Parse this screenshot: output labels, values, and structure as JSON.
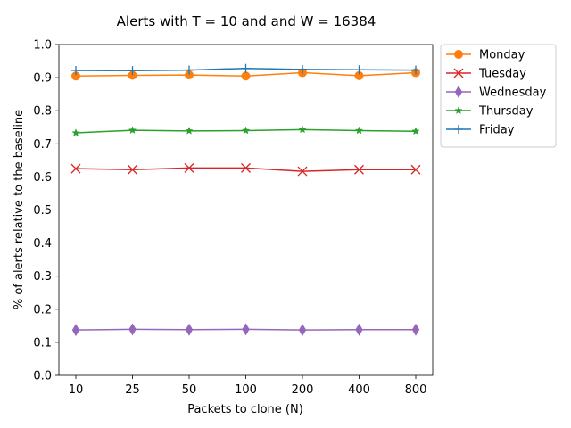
{
  "chart_data": {
    "type": "line",
    "title": "Alerts with T = 10 and and W = 16384",
    "xlabel": "Packets to clone (N)",
    "ylabel": "% of alerts relative to the baseline",
    "categories": [
      "10",
      "25",
      "50",
      "100",
      "200",
      "400",
      "800"
    ],
    "ylim": [
      0.0,
      1.0
    ],
    "yticks": [
      "0.0",
      "0.1",
      "0.2",
      "0.3",
      "0.4",
      "0.5",
      "0.6",
      "0.7",
      "0.8",
      "0.9",
      "1.0"
    ],
    "grid": false,
    "legend_position": "outside-top-right",
    "series": [
      {
        "name": "Monday",
        "color": "#ff7f0e",
        "marker": "circle",
        "values": [
          0.905,
          0.907,
          0.908,
          0.905,
          0.915,
          0.906,
          0.915
        ]
      },
      {
        "name": "Tuesday",
        "color": "#d62728",
        "marker": "x",
        "values": [
          0.625,
          0.622,
          0.627,
          0.627,
          0.617,
          0.622,
          0.622
        ]
      },
      {
        "name": "Wednesday",
        "color": "#9467bd",
        "marker": "thin-diamond",
        "values": [
          0.137,
          0.139,
          0.138,
          0.139,
          0.137,
          0.138,
          0.138
        ]
      },
      {
        "name": "Thursday",
        "color": "#2ca02c",
        "marker": "star",
        "values": [
          0.733,
          0.741,
          0.739,
          0.74,
          0.743,
          0.74,
          0.738
        ]
      },
      {
        "name": "Friday",
        "color": "#1f77b4",
        "marker": "plus",
        "values": [
          0.922,
          0.921,
          0.923,
          0.928,
          0.925,
          0.924,
          0.923
        ]
      }
    ]
  }
}
